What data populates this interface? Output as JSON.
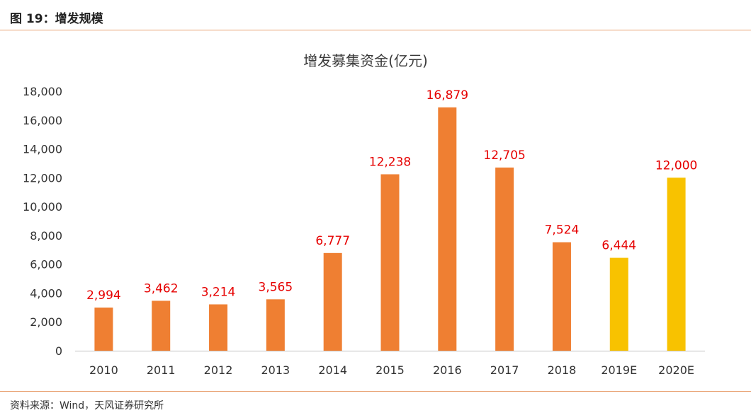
{
  "figure": {
    "title": "图 19：增发规模",
    "source": "资料来源：Wind，天风证券研究所"
  },
  "colors": {
    "actual": "#ef7f32",
    "estimate": "#f8c200",
    "label": "#e60000",
    "rule": "#e8a070",
    "axis": "#bfbfbf"
  },
  "chart_data": {
    "type": "bar",
    "title": "增发募集资金(亿元)",
    "categories": [
      "2010",
      "2011",
      "2012",
      "2013",
      "2014",
      "2015",
      "2016",
      "2017",
      "2018",
      "2019E",
      "2020E"
    ],
    "values": [
      2994,
      3462,
      3214,
      3565,
      6777,
      12238,
      16879,
      12705,
      7524,
      6444,
      12000
    ],
    "data_labels": [
      "2,994",
      "3,462",
      "3,214",
      "3,565",
      "6,777",
      "12,238",
      "16,879",
      "12,705",
      "7,524",
      "6,444",
      "12,000"
    ],
    "estimate_flags": [
      false,
      false,
      false,
      false,
      false,
      false,
      false,
      false,
      false,
      true,
      true
    ],
    "yticks": [
      "0",
      "2,000",
      "4,000",
      "6,000",
      "8,000",
      "10,000",
      "12,000",
      "14,000",
      "16,000",
      "18,000"
    ],
    "ytick_values": [
      0,
      2000,
      4000,
      6000,
      8000,
      10000,
      12000,
      14000,
      16000,
      18000
    ],
    "ylim": [
      0,
      18000
    ],
    "xlabel": "",
    "ylabel": "",
    "grid": false,
    "legend": "none"
  }
}
